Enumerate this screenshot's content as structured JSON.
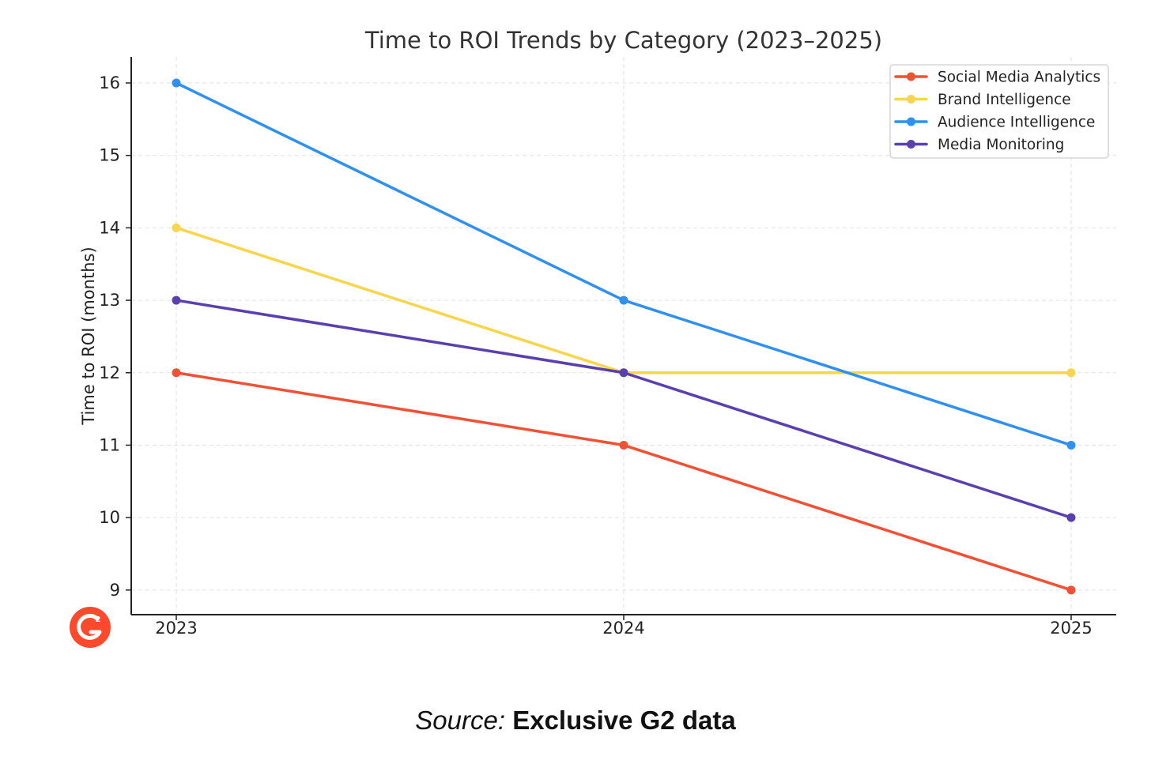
{
  "chart_data": {
    "type": "line",
    "title": "Time to ROI Trends by Category (2023–2025)",
    "xlabel": "",
    "ylabel": "Time to ROI (months)",
    "x": [
      "2023",
      "2024",
      "2025"
    ],
    "yticks": [
      "9",
      "10",
      "11",
      "12",
      "13",
      "14",
      "15",
      "16"
    ],
    "ylim": [
      8.66,
      16.36
    ],
    "grid": true,
    "grid_style": "dashed",
    "legend_position": "top-right",
    "series": [
      {
        "name": "Social Media Analytics",
        "color": "#f05033",
        "values": [
          12,
          11,
          9
        ]
      },
      {
        "name": "Brand Intelligence",
        "color": "#f8d54a",
        "values": [
          14,
          12,
          12
        ]
      },
      {
        "name": "Audience Intelligence",
        "color": "#2f90ee",
        "values": [
          16,
          13,
          11
        ]
      },
      {
        "name": "Media Monitoring",
        "color": "#5a3fae",
        "values": [
          13,
          12,
          10
        ]
      }
    ]
  },
  "logo": {
    "text": "G2",
    "icon": "g2-logo-icon",
    "color": "#ff492c"
  },
  "source": {
    "prefix": "Source:",
    "value": "Exclusive G2 data"
  }
}
